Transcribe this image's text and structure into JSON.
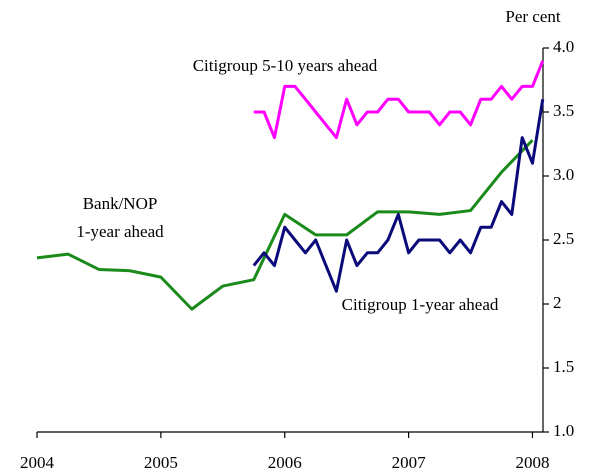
{
  "chart_data": {
    "type": "line",
    "unit_label": "Per cent",
    "annotations": [
      "Citigroup  5-10 years ahead",
      "Bank/NOP",
      "1-year ahead",
      "Citigroup 1-year ahead"
    ],
    "xlim": [
      2004,
      2008.085
    ],
    "xticks": [
      2004,
      2005,
      2006,
      2007,
      2008
    ],
    "ylim": [
      1.0,
      4.0
    ],
    "yticks": [
      {
        "value": 1.0,
        "label": "1.0"
      },
      1.5,
      2.0,
      2.5,
      {
        "value": 3.0,
        "label": "3.0"
      },
      3.5,
      {
        "value": 4.0,
        "label": "4.0"
      }
    ],
    "series": [
      {
        "color": "#ff00ff",
        "x": [
          2005.75,
          2005.833,
          2005.917,
          2006.0,
          2006.083,
          2006.167,
          2006.25,
          2006.333,
          2006.417,
          2006.5,
          2006.583,
          2006.667,
          2006.75,
          2006.833,
          2006.917,
          2007.0,
          2007.083,
          2007.167,
          2007.25,
          2007.333,
          2007.417,
          2007.5,
          2007.583,
          2007.667,
          2007.75,
          2007.833,
          2007.917,
          2008.0,
          2008.083
        ],
        "values": [
          3.5,
          3.5,
          3.3,
          3.7,
          3.7,
          3.6,
          3.5,
          3.4,
          3.3,
          3.6,
          3.4,
          3.5,
          3.5,
          3.6,
          3.6,
          3.5,
          3.5,
          3.5,
          3.4,
          3.5,
          3.5,
          3.4,
          3.6,
          3.6,
          3.7,
          3.6,
          3.7,
          3.7,
          3.9
        ]
      },
      {
        "color": "#1a8a1a",
        "x": [
          2004.0,
          2004.25,
          2004.5,
          2004.75,
          2005.0,
          2005.25,
          2005.5,
          2005.75,
          2006.0,
          2006.25,
          2006.5,
          2006.75,
          2007.0,
          2007.25,
          2007.5,
          2007.75,
          2008.0
        ],
        "values": [
          2.36,
          2.39,
          2.27,
          2.26,
          2.21,
          1.96,
          2.14,
          2.19,
          2.7,
          2.54,
          2.54,
          2.72,
          2.72,
          2.7,
          2.73,
          3.03,
          3.28
        ]
      },
      {
        "color": "#0a0a7a",
        "x": [
          2005.75,
          2005.833,
          2005.917,
          2006.0,
          2006.083,
          2006.167,
          2006.25,
          2006.333,
          2006.417,
          2006.5,
          2006.583,
          2006.667,
          2006.75,
          2006.833,
          2006.917,
          2007.0,
          2007.083,
          2007.167,
          2007.25,
          2007.333,
          2007.417,
          2007.5,
          2007.583,
          2007.667,
          2007.75,
          2007.833,
          2007.917,
          2008.0,
          2008.083
        ],
        "values": [
          2.3,
          2.4,
          2.3,
          2.6,
          2.5,
          2.4,
          2.5,
          2.3,
          2.1,
          2.5,
          2.3,
          2.4,
          2.4,
          2.5,
          2.7,
          2.4,
          2.5,
          2.5,
          2.5,
          2.4,
          2.5,
          2.4,
          2.6,
          2.6,
          2.8,
          2.7,
          3.3,
          3.1,
          3.6
        ]
      }
    ]
  }
}
